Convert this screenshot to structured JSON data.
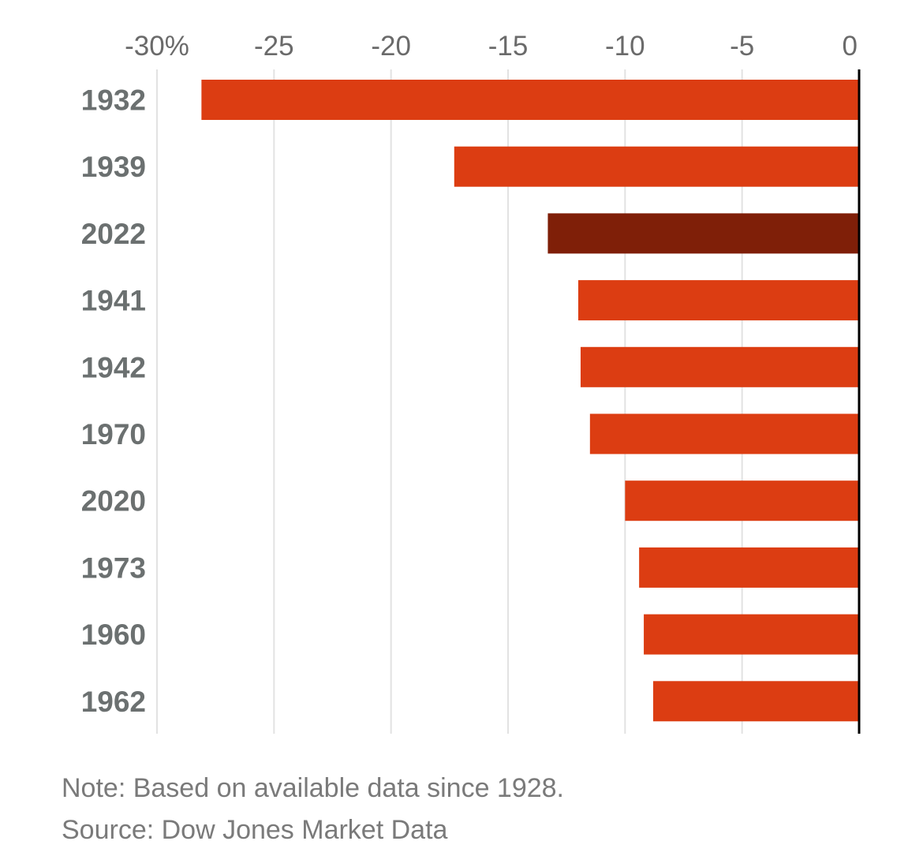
{
  "chart_data": {
    "type": "bar",
    "orientation": "horizontal",
    "categories": [
      "1932",
      "1939",
      "2022",
      "1941",
      "1942",
      "1970",
      "2020",
      "1973",
      "1960",
      "1962"
    ],
    "values": [
      -28.1,
      -17.3,
      -13.3,
      -12.0,
      -11.9,
      -11.5,
      -10.0,
      -9.4,
      -9.2,
      -8.8
    ],
    "highlight": "2022",
    "xlim": [
      -30,
      0
    ],
    "xticks": [
      -30,
      -25,
      -20,
      -15,
      -10,
      -5,
      0
    ],
    "xtick_labels": [
      "-30%",
      "-25",
      "-20",
      "-15",
      "-10",
      "-5",
      "0"
    ],
    "grid": true,
    "colors": {
      "bar": "#DC3D12",
      "highlight": "#7F1F08",
      "grid": "#E2E2E2",
      "zero_line": "#000000"
    },
    "title": "",
    "xlabel": "",
    "ylabel": ""
  },
  "footer": {
    "note": "Note: Based on available data since 1928.",
    "source": "Source: Dow Jones Market Data"
  }
}
